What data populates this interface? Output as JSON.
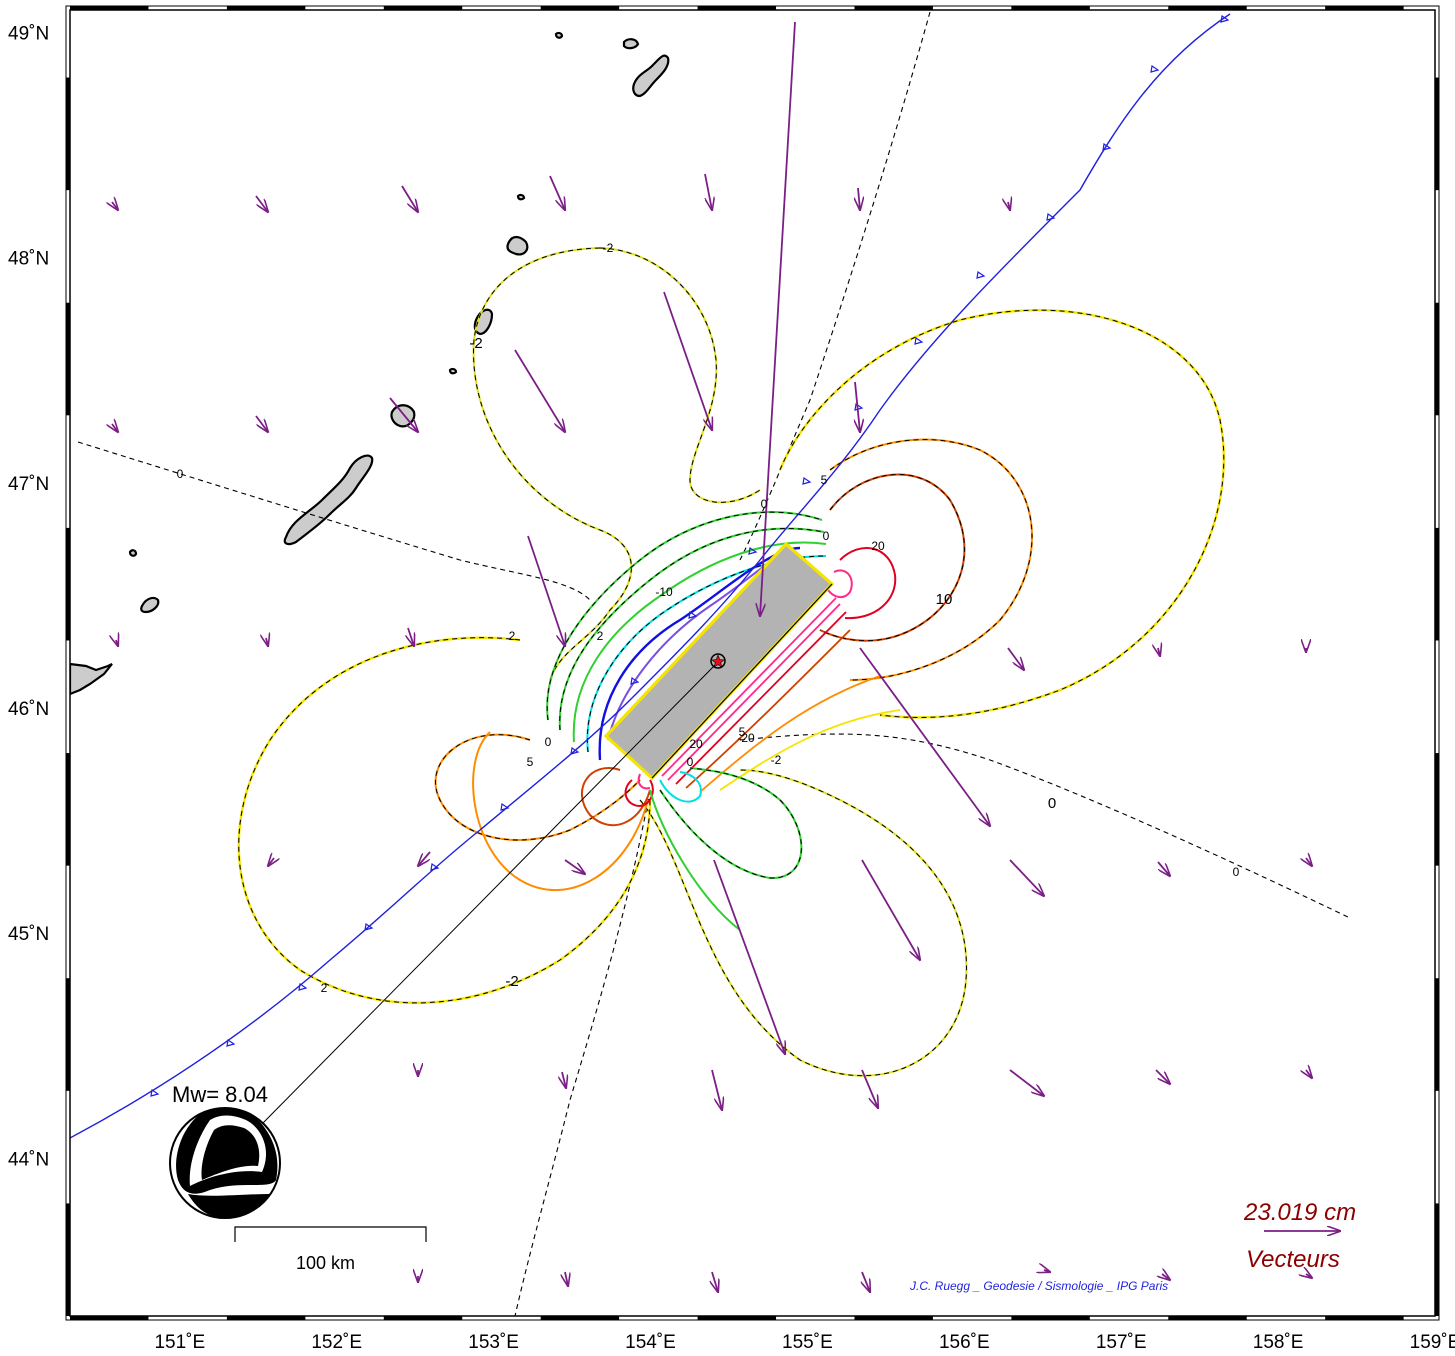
{
  "map": {
    "lon_range": [
      150.3,
      159.0
    ],
    "lat_range": [
      43.3,
      49.1
    ],
    "lon_ticks": [
      {
        "value": 151,
        "label": "151˚E"
      },
      {
        "value": 152,
        "label": "152˚E"
      },
      {
        "value": 153,
        "label": "153˚E"
      },
      {
        "value": 154,
        "label": "154˚E"
      },
      {
        "value": 155,
        "label": "155˚E"
      },
      {
        "value": 156,
        "label": "156˚E"
      },
      {
        "value": 157,
        "label": "157˚E"
      },
      {
        "value": 158,
        "label": "158˚E"
      },
      {
        "value": 159,
        "label": "159˚E"
      }
    ],
    "lat_ticks": [
      {
        "value": 44,
        "label": "44˚N"
      },
      {
        "value": 45,
        "label": "45˚N"
      },
      {
        "value": 46,
        "label": "46˚N"
      },
      {
        "value": 47,
        "label": "47˚N"
      },
      {
        "value": 48,
        "label": "48˚N"
      },
      {
        "value": 49,
        "label": "49˚N"
      }
    ],
    "colors": {
      "trench": "#1f1fe0",
      "vectors": "#7b1f86",
      "fault_fill": "#b3b3b3",
      "fault_outline": "#f5e400",
      "land": "#cccccc",
      "legend_text": "#8b0000"
    }
  },
  "contours": {
    "labels": [
      "-2",
      "-2",
      "-2",
      "-2",
      "2",
      "2",
      "2",
      "0",
      "0",
      "0",
      "0",
      "0",
      "0",
      "0",
      "5",
      "5",
      "5",
      "-10",
      "10",
      "20",
      "20",
      "-20"
    ],
    "levels": [
      -20,
      -10,
      -5,
      -2,
      0,
      2,
      5,
      10,
      20
    ],
    "colors": {
      "minus20": "#7a4fe0",
      "minus10": "#00e0e0",
      "minus5": "#1010e0",
      "minus2": "#e0e020",
      "zero": "#000000",
      "plus2": "#30d030",
      "plus5": "#ff8c00",
      "plus10": "#d04000",
      "plus20": "#e00020",
      "plus40": "#ff2a8a"
    }
  },
  "event": {
    "magnitude_label": "Mw= 8.04",
    "epicenter": {
      "lon": 154.5,
      "lat": 46.25
    },
    "beachball_icon": "focal-mechanism-beachball-icon"
  },
  "scalebar": {
    "label": "100 km",
    "length_km": 100
  },
  "legend": {
    "vector_value": "23.019  cm",
    "vector_title": "Vecteurs",
    "vector_icon": "purple-arrow-icon"
  },
  "credit": "J.C. Ruegg _ Geodesie / Sismologie _ IPG Paris"
}
